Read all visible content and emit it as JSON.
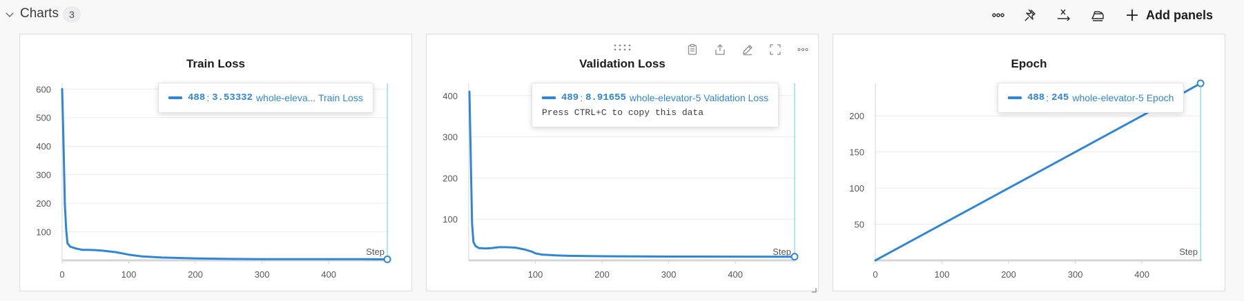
{
  "section": {
    "title": "Charts",
    "count": "3"
  },
  "toolbar": {
    "icons": [
      "more-icon",
      "pin-icon",
      "x-axis-icon",
      "smoothing-icon",
      "plus-icon"
    ],
    "add_panels_label": "Add panels"
  },
  "panel_actions": {
    "icons": [
      "clipboard-icon",
      "export-icon",
      "edit-icon",
      "fullscreen-icon",
      "more-icon"
    ]
  },
  "colors": {
    "series": "#2f86d6",
    "cursor": "#5fd3d6",
    "grid": "#ececee",
    "axis": "#d4d5d8"
  },
  "charts": [
    {
      "title": "Train Loss",
      "step_label": "Step",
      "tooltip": {
        "step": "488",
        "sep": ":",
        "value": "3.53332",
        "name": "whole-eleva... Train Loss",
        "hint": ""
      },
      "x_ticks": [
        "0",
        "100",
        "200",
        "300",
        "400"
      ],
      "y_ticks": [
        "100",
        "200",
        "300",
        "400",
        "500",
        "600"
      ]
    },
    {
      "title": "Validation Loss",
      "step_label": "Step",
      "tooltip": {
        "step": "489",
        "sep": ":",
        "value": "8.91655",
        "name": "whole-elevator-5 Validation Loss",
        "hint": "Press CTRL+C to copy this data"
      },
      "x_ticks": [
        "100",
        "200",
        "300",
        "400"
      ],
      "y_ticks": [
        "100",
        "200",
        "300",
        "400"
      ]
    },
    {
      "title": "Epoch",
      "step_label": "Step",
      "tooltip": {
        "step": "488",
        "sep": ":",
        "value": "245",
        "name": "whole-elevator-5 Epoch",
        "hint": ""
      },
      "x_ticks": [
        "0",
        "100",
        "200",
        "300",
        "400"
      ],
      "y_ticks": [
        "50",
        "100",
        "150",
        "200"
      ]
    }
  ],
  "chart_data": [
    {
      "type": "line",
      "title": "Train Loss",
      "xlabel": "Step",
      "ylabel": "",
      "xlim": [
        0,
        490
      ],
      "ylim": [
        0,
        620
      ],
      "grid": true,
      "series": [
        {
          "name": "whole-elevator-5 Train Loss",
          "x": [
            0,
            2,
            4,
            6,
            8,
            12,
            20,
            30,
            40,
            50,
            60,
            80,
            100,
            120,
            150,
            200,
            250,
            300,
            350,
            400,
            450,
            488
          ],
          "y": [
            600,
            420,
            200,
            110,
            60,
            48,
            42,
            37,
            37,
            36,
            34,
            29,
            20,
            14,
            10,
            7,
            5,
            4,
            4,
            4,
            4,
            3.53
          ]
        }
      ],
      "cursor": {
        "step": 488,
        "value": 3.53332
      }
    },
    {
      "type": "line",
      "title": "Validation Loss",
      "xlabel": "Step",
      "ylabel": "",
      "xlim": [
        0,
        490
      ],
      "ylim": [
        0,
        430
      ],
      "grid": true,
      "series": [
        {
          "name": "whole-elevator-5 Validation Loss",
          "x": [
            1,
            3,
            5,
            7,
            10,
            15,
            25,
            35,
            45,
            55,
            70,
            85,
            95,
            100,
            110,
            130,
            150,
            200,
            250,
            300,
            400,
            489
          ],
          "y": [
            410,
            250,
            90,
            45,
            35,
            30,
            29,
            30,
            32,
            32,
            31,
            26,
            21,
            17,
            14,
            12,
            11,
            10,
            9.5,
            9.2,
            9,
            8.92
          ]
        }
      ],
      "cursor": {
        "step": 489,
        "value": 8.91655
      }
    },
    {
      "type": "line",
      "title": "Epoch",
      "xlabel": "Step",
      "ylabel": "",
      "xlim": [
        0,
        490
      ],
      "ylim": [
        0,
        245
      ],
      "grid": true,
      "series": [
        {
          "name": "whole-elevator-5 Epoch",
          "x": [
            0,
            100,
            200,
            300,
            400,
            488
          ],
          "y": [
            0,
            50,
            100,
            150,
            200,
            245
          ]
        }
      ],
      "cursor": {
        "step": 488,
        "value": 245
      }
    }
  ]
}
